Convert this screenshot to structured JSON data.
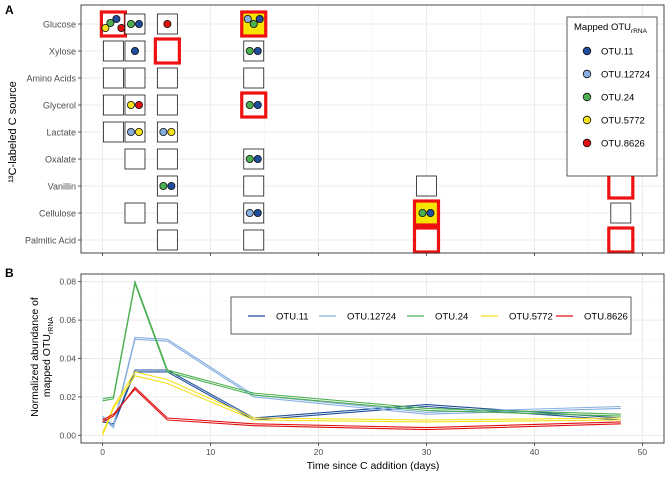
{
  "colors": {
    "OTU.11": "#1f4e9c",
    "OTU.12724": "#86aee0",
    "OTU.24": "#4caf50",
    "OTU.5772": "#f5e11a",
    "OTU.8626": "#e01010",
    "box_stroke": "#1a1a1a",
    "highlight_stroke": "#ee1111",
    "highlight_fill": "#f5e500",
    "grid": "#ebebeb",
    "panel_border": "#333333"
  },
  "labels": {
    "panel_a": "A",
    "panel_b": "B",
    "y_label_a": "¹³C-labeled C source",
    "y_label_b_line1": "Normalized abundance of",
    "y_label_b_line2": "mapped OTU",
    "y_label_b_sub": "rRNA",
    "x_label": "Time since C addition (days)"
  },
  "legend_a": {
    "title": "Mapped OTU",
    "title_sub": "rRNA",
    "items": [
      "OTU.11",
      "OTU.12724",
      "OTU.24",
      "OTU.5772",
      "OTU.8626"
    ]
  },
  "chart_data": [
    {
      "type": "scatter",
      "panel": "A",
      "sources": [
        "Glucose",
        "Xylose",
        "Amino Acids",
        "Glycerol",
        "Lactate",
        "Oxalate",
        "Vanillin",
        "Cellulose",
        "Palmitic Acid"
      ],
      "days": [
        1,
        3,
        6,
        14,
        30,
        48
      ],
      "boxes": [
        {
          "source": "Glucose",
          "day": 1,
          "highlight": "red",
          "otus": [
            "OTU.5772",
            "OTU.24",
            "OTU.11",
            "OTU.8626"
          ]
        },
        {
          "source": "Glucose",
          "day": 3,
          "otus": [
            "OTU.24",
            "OTU.11"
          ]
        },
        {
          "source": "Glucose",
          "day": 6,
          "otus": [
            "OTU.8626"
          ]
        },
        {
          "source": "Glucose",
          "day": 14,
          "highlight": "red-yellow",
          "otus": [
            "OTU.12724",
            "OTU.24",
            "OTU.11"
          ]
        },
        {
          "source": "Xylose",
          "day": 1,
          "otus": []
        },
        {
          "source": "Xylose",
          "day": 3,
          "otus": [
            "OTU.11"
          ]
        },
        {
          "source": "Xylose",
          "day": 6,
          "highlight": "red",
          "otus": []
        },
        {
          "source": "Xylose",
          "day": 14,
          "otus": [
            "OTU.24",
            "OTU.11"
          ]
        },
        {
          "source": "Amino Acids",
          "day": 1,
          "otus": []
        },
        {
          "source": "Amino Acids",
          "day": 3,
          "otus": []
        },
        {
          "source": "Amino Acids",
          "day": 6,
          "otus": []
        },
        {
          "source": "Amino Acids",
          "day": 14,
          "otus": []
        },
        {
          "source": "Glycerol",
          "day": 1,
          "otus": []
        },
        {
          "source": "Glycerol",
          "day": 3,
          "otus": [
            "OTU.5772",
            "OTU.8626"
          ]
        },
        {
          "source": "Glycerol",
          "day": 6,
          "otus": []
        },
        {
          "source": "Glycerol",
          "day": 14,
          "highlight": "red",
          "otus": [
            "OTU.24",
            "OTU.11"
          ]
        },
        {
          "source": "Lactate",
          "day": 1,
          "otus": []
        },
        {
          "source": "Lactate",
          "day": 3,
          "otus": [
            "OTU.12724",
            "OTU.5772"
          ]
        },
        {
          "source": "Lactate",
          "day": 6,
          "otus": [
            "OTU.12724",
            "OTU.5772"
          ]
        },
        {
          "source": "Oxalate",
          "day": 3,
          "otus": []
        },
        {
          "source": "Oxalate",
          "day": 6,
          "otus": []
        },
        {
          "source": "Oxalate",
          "day": 14,
          "otus": [
            "OTU.24",
            "OTU.11"
          ]
        },
        {
          "source": "Vanillin",
          "day": 6,
          "otus": [
            "OTU.24",
            "OTU.11"
          ]
        },
        {
          "source": "Vanillin",
          "day": 14,
          "otus": []
        },
        {
          "source": "Vanillin",
          "day": 30,
          "otus": []
        },
        {
          "source": "Vanillin",
          "day": 48,
          "highlight": "red",
          "otus": []
        },
        {
          "source": "Cellulose",
          "day": 3,
          "otus": []
        },
        {
          "source": "Cellulose",
          "day": 6,
          "otus": []
        },
        {
          "source": "Cellulose",
          "day": 14,
          "otus": [
            "OTU.12724",
            "OTU.11"
          ]
        },
        {
          "source": "Cellulose",
          "day": 30,
          "highlight": "red-yellow",
          "otus": [
            "OTU.24",
            "OTU.11"
          ]
        },
        {
          "source": "Cellulose",
          "day": 48,
          "otus": []
        },
        {
          "source": "Palmitic Acid",
          "day": 6,
          "otus": []
        },
        {
          "source": "Palmitic Acid",
          "day": 14,
          "otus": []
        },
        {
          "source": "Palmitic Acid",
          "day": 30,
          "highlight": "red",
          "otus": []
        },
        {
          "source": "Palmitic Acid",
          "day": 48,
          "highlight": "red",
          "otus": []
        }
      ]
    },
    {
      "type": "line",
      "panel": "B",
      "xlim": [
        -2,
        52
      ],
      "ylim": [
        -0.004,
        0.084
      ],
      "xticks": [
        0,
        10,
        20,
        30,
        40,
        50
      ],
      "yticks": [
        0.0,
        0.02,
        0.04,
        0.06,
        0.08
      ],
      "ytick_labels": [
        "0.00",
        "0.02",
        "0.04",
        "0.06",
        "0.08"
      ],
      "series": [
        {
          "name": "OTU.11",
          "lines": [
            [
              [
                0,
                0.007
              ],
              [
                1,
                0.006
              ],
              [
                3,
                0.034
              ],
              [
                6,
                0.034
              ],
              [
                14,
                0.009
              ],
              [
                30,
                0.016
              ],
              [
                48,
                0.009
              ]
            ],
            [
              [
                0,
                0.009
              ],
              [
                1,
                0.005
              ],
              [
                3,
                0.033
              ],
              [
                6,
                0.033
              ],
              [
                14,
                0.008
              ],
              [
                30,
                0.015
              ],
              [
                48,
                0.008
              ]
            ]
          ]
        },
        {
          "name": "OTU.12724",
          "lines": [
            [
              [
                0,
                0.01
              ],
              [
                1,
                0.005
              ],
              [
                3,
                0.051
              ],
              [
                6,
                0.05
              ],
              [
                14,
                0.021
              ],
              [
                30,
                0.012
              ],
              [
                48,
                0.015
              ]
            ],
            [
              [
                0,
                0.009
              ],
              [
                1,
                0.004
              ],
              [
                3,
                0.05
              ],
              [
                6,
                0.049
              ],
              [
                14,
                0.02
              ],
              [
                30,
                0.011
              ],
              [
                48,
                0.014
              ]
            ]
          ]
        },
        {
          "name": "OTU.24",
          "lines": [
            [
              [
                0,
                0.019
              ],
              [
                1,
                0.02
              ],
              [
                3,
                0.08
              ],
              [
                6,
                0.034
              ],
              [
                14,
                0.022
              ],
              [
                30,
                0.014
              ],
              [
                48,
                0.011
              ]
            ],
            [
              [
                0,
                0.018
              ],
              [
                1,
                0.019
              ],
              [
                3,
                0.079
              ],
              [
                6,
                0.033
              ],
              [
                14,
                0.021
              ],
              [
                30,
                0.013
              ],
              [
                48,
                0.01
              ]
            ]
          ]
        },
        {
          "name": "OTU.5772",
          "lines": [
            [
              [
                0,
                0.001
              ],
              [
                1,
                0.015
              ],
              [
                3,
                0.033
              ],
              [
                6,
                0.029
              ],
              [
                14,
                0.009
              ],
              [
                30,
                0.008
              ],
              [
                48,
                0.009
              ]
            ],
            [
              [
                0,
                0.0
              ],
              [
                1,
                0.014
              ],
              [
                3,
                0.031
              ],
              [
                6,
                0.027
              ],
              [
                14,
                0.008
              ],
              [
                30,
                0.007
              ],
              [
                48,
                0.008
              ]
            ]
          ]
        },
        {
          "name": "OTU.8626",
          "lines": [
            [
              [
                0,
                0.007
              ],
              [
                1,
                0.01
              ],
              [
                3,
                0.025
              ],
              [
                6,
                0.009
              ],
              [
                14,
                0.006
              ],
              [
                30,
                0.004
              ],
              [
                48,
                0.007
              ]
            ],
            [
              [
                0,
                0.008
              ],
              [
                1,
                0.011
              ],
              [
                3,
                0.024
              ],
              [
                6,
                0.008
              ],
              [
                14,
                0.005
              ],
              [
                30,
                0.003
              ],
              [
                48,
                0.006
              ]
            ]
          ]
        }
      ]
    }
  ]
}
